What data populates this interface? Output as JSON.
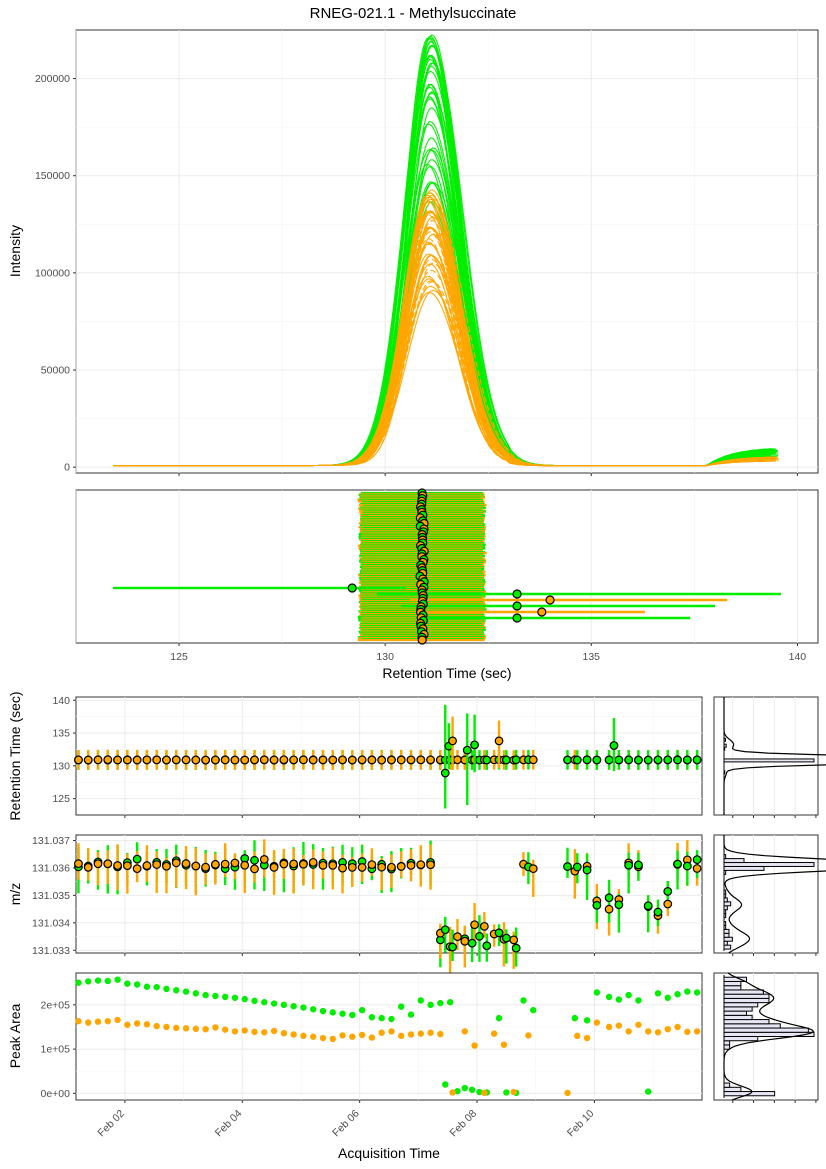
{
  "title": "RNEG-021.1 - Methylsuccinate",
  "colors": {
    "series_a": "#00ee00",
    "series_b": "#ffa500",
    "point_edge": "#000000",
    "hist_fill": "#e6e6f5",
    "grid": "#ebebeb",
    "panel_border": "#333333"
  },
  "chart_data": [
    {
      "type": "line",
      "name": "chromatogram",
      "xlabel": "",
      "ylabel": "Intensity",
      "xlim": [
        122.5,
        140.5
      ],
      "ylim": [
        -3000,
        225000
      ],
      "yticks": [
        0,
        50000,
        100000,
        150000,
        200000
      ],
      "ytick_labels": [
        "0",
        "50000",
        "100000",
        "150000",
        "200000"
      ],
      "grid": true,
      "legend": "none",
      "trace_groups": [
        {
          "color": "green",
          "count": 40,
          "apex_rt": 131.1,
          "apex_range": [
            135000,
            222000
          ],
          "rt_range": [
            123.4,
            139.6
          ],
          "tail_level": 8000
        },
        {
          "color": "orange",
          "count": 40,
          "apex_rt": 131.1,
          "apex_range": [
            88000,
            142000
          ],
          "rt_range": [
            123.4,
            139.6
          ],
          "tail_level": 4000
        }
      ]
    },
    {
      "type": "scatter",
      "name": "peak_boundaries",
      "xlabel": "Retention Time (sec)",
      "xlim": [
        122.5,
        140.5
      ],
      "xticks": [
        125,
        130,
        135,
        140
      ],
      "xtick_labels": [
        "125",
        "130",
        "135",
        "140"
      ],
      "rows": 160,
      "typical_range": [
        129.4,
        132.4
      ],
      "outliers": [
        {
          "rt": 129.2,
          "left": 123.4,
          "right": 130.5,
          "color": "green"
        },
        {
          "rt": 133.2,
          "left": 129.8,
          "right": 139.6,
          "color": "green"
        },
        {
          "rt": 134.0,
          "left": 130.6,
          "right": 138.3,
          "color": "orange"
        },
        {
          "rt": 133.2,
          "left": 130.4,
          "right": 138.0,
          "color": "green"
        },
        {
          "rt": 133.8,
          "left": 130.8,
          "right": 136.3,
          "color": "orange"
        },
        {
          "rt": 133.2,
          "left": 130.9,
          "right": 137.4,
          "color": "green"
        }
      ]
    },
    {
      "type": "scatter",
      "name": "retention_time_trend",
      "ylabel": "Retention Time (sec)",
      "ylim": [
        122.5,
        140.5
      ],
      "yticks": [
        125,
        130,
        135,
        140
      ],
      "ytick_labels": [
        "125",
        "130",
        "135",
        "140"
      ],
      "baseline": 130.9,
      "errorbar_halfwidth": 1.5,
      "excursions": [
        {
          "date": "2024-02-07 11:00",
          "y": 128.9,
          "lo": 123.5,
          "hi": 139.3,
          "color": "green"
        },
        {
          "date": "2024-02-07 12:30",
          "y": 133.0,
          "lo": 129.5,
          "hi": 136.5,
          "color": "green"
        },
        {
          "date": "2024-02-07 14:00",
          "y": 133.8,
          "lo": 129.4,
          "hi": 137.5,
          "color": "orange"
        },
        {
          "date": "2024-02-07 20:00",
          "y": 132.4,
          "lo": 124.0,
          "hi": 138.0,
          "color": "green"
        },
        {
          "date": "2024-02-07 23:00",
          "y": 133.2,
          "lo": 129.0,
          "hi": 137.8,
          "color": "green"
        },
        {
          "date": "2024-02-08 09:00",
          "y": 133.8,
          "lo": 129.6,
          "hi": 136.9,
          "color": "orange"
        },
        {
          "date": "2024-02-10 08:00",
          "y": 133.1,
          "lo": 129.2,
          "hi": 137.3,
          "color": "green"
        }
      ]
    },
    {
      "type": "scatter",
      "name": "mz_trend",
      "ylabel": "m/z",
      "ylim": [
        131.0329,
        131.0372
      ],
      "yticks": [
        131.033,
        131.034,
        131.035,
        131.036,
        131.037
      ],
      "ytick_labels": [
        "131.033",
        "131.034",
        "131.035",
        "131.036",
        "131.037"
      ]
    },
    {
      "type": "scatter",
      "name": "peak_area_trend",
      "ylabel": "Peak Area",
      "xlabel": "Acquisition Time",
      "ylim": [
        -15000,
        272000
      ],
      "yticks": [
        0,
        100000,
        200000
      ],
      "ytick_labels": [
        "0e+00",
        "1e+05",
        "2e+05"
      ],
      "xlim": [
        "2024-02-01 04:00",
        "2024-02-11 20:00"
      ],
      "xticks": [
        "2024-02-02",
        "2024-02-04",
        "2024-02-06",
        "2024-02-08",
        "2024-02-10"
      ],
      "xtick_labels": [
        "Feb 02",
        "Feb 04",
        "Feb 06",
        "Feb 08",
        "Feb 10"
      ],
      "green": [
        [
          "2024-02-01 05:00",
          250000
        ],
        [
          "2024-02-01 09:00",
          253000
        ],
        [
          "2024-02-01 13:00",
          255000
        ],
        [
          "2024-02-01 17:00",
          254000
        ],
        [
          "2024-02-01 21:00",
          257000
        ],
        [
          "2024-02-02 01:00",
          248000
        ],
        [
          "2024-02-02 05:00",
          246000
        ],
        [
          "2024-02-02 09:00",
          241000
        ],
        [
          "2024-02-02 13:00",
          240000
        ],
        [
          "2024-02-02 17:00",
          236000
        ],
        [
          "2024-02-02 21:00",
          233000
        ],
        [
          "2024-02-03 01:00",
          230000
        ],
        [
          "2024-02-03 05:00",
          226000
        ],
        [
          "2024-02-03 09:00",
          222000
        ],
        [
          "2024-02-03 13:00",
          220000
        ],
        [
          "2024-02-03 17:00",
          218000
        ],
        [
          "2024-02-03 21:00",
          216000
        ],
        [
          "2024-02-04 01:00",
          213000
        ],
        [
          "2024-02-04 05:00",
          209000
        ],
        [
          "2024-02-04 09:00",
          206000
        ],
        [
          "2024-02-04 13:00",
          203000
        ],
        [
          "2024-02-04 17:00",
          200000
        ],
        [
          "2024-02-04 21:00",
          197000
        ],
        [
          "2024-02-05 01:00",
          194000
        ],
        [
          "2024-02-05 05:00",
          190000
        ],
        [
          "2024-02-05 09:00",
          186000
        ],
        [
          "2024-02-05 13:00",
          183000
        ],
        [
          "2024-02-05 17:00",
          180000
        ],
        [
          "2024-02-05 21:00",
          177000
        ],
        [
          "2024-02-06 01:00",
          188000
        ],
        [
          "2024-02-06 05:00",
          172000
        ],
        [
          "2024-02-06 09:00",
          170000
        ],
        [
          "2024-02-06 13:00",
          168000
        ],
        [
          "2024-02-06 17:00",
          196000
        ],
        [
          "2024-02-06 21:00",
          178000
        ],
        [
          "2024-02-07 01:00",
          210000
        ],
        [
          "2024-02-07 05:00",
          200000
        ],
        [
          "2024-02-07 09:00",
          204000
        ],
        [
          "2024-02-07 11:00",
          20000
        ],
        [
          "2024-02-07 13:00",
          206000
        ],
        [
          "2024-02-07 16:00",
          5000
        ],
        [
          "2024-02-07 19:00",
          12000
        ],
        [
          "2024-02-07 22:00",
          8000
        ],
        [
          "2024-02-08 01:00",
          3000
        ],
        [
          "2024-02-08 04:00",
          2000
        ],
        [
          "2024-02-08 09:00",
          170000
        ],
        [
          "2024-02-08 12:00",
          2000
        ],
        [
          "2024-02-08 16:00",
          1000
        ],
        [
          "2024-02-08 19:00",
          210000
        ],
        [
          "2024-02-08 23:00",
          188000
        ],
        [
          "2024-02-09 16:00",
          170000
        ],
        [
          "2024-02-09 21:00",
          165000
        ],
        [
          "2024-02-10 01:00",
          228000
        ],
        [
          "2024-02-10 06:00",
          218000
        ],
        [
          "2024-02-10 10:00",
          212000
        ],
        [
          "2024-02-10 14:00",
          222000
        ],
        [
          "2024-02-10 18:00",
          210000
        ],
        [
          "2024-02-10 22:00",
          4000
        ],
        [
          "2024-02-11 02:00",
          226000
        ],
        [
          "2024-02-11 06:00",
          216000
        ],
        [
          "2024-02-11 10:00",
          224000
        ],
        [
          "2024-02-11 14:00",
          230000
        ],
        [
          "2024-02-11 18:00",
          228000
        ]
      ],
      "orange": [
        [
          "2024-02-01 05:00",
          163000
        ],
        [
          "2024-02-01 09:00",
          160000
        ],
        [
          "2024-02-01 13:00",
          162000
        ],
        [
          "2024-02-01 17:00",
          163000
        ],
        [
          "2024-02-01 21:00",
          166000
        ],
        [
          "2024-02-02 01:00",
          155000
        ],
        [
          "2024-02-02 05:00",
          158000
        ],
        [
          "2024-02-02 09:00",
          156000
        ],
        [
          "2024-02-02 13:00",
          152000
        ],
        [
          "2024-02-02 17:00",
          150000
        ],
        [
          "2024-02-02 21:00",
          148000
        ],
        [
          "2024-02-03 01:00",
          147000
        ],
        [
          "2024-02-03 05:00",
          146000
        ],
        [
          "2024-02-03 09:00",
          145000
        ],
        [
          "2024-02-03 13:00",
          149000
        ],
        [
          "2024-02-03 17:00",
          144000
        ],
        [
          "2024-02-03 21:00",
          140000
        ],
        [
          "2024-02-04 01:00",
          142000
        ],
        [
          "2024-02-04 05:00",
          139000
        ],
        [
          "2024-02-04 09:00",
          138000
        ],
        [
          "2024-02-04 13:00",
          141000
        ],
        [
          "2024-02-04 17:00",
          136000
        ],
        [
          "2024-02-04 21:00",
          133000
        ],
        [
          "2024-02-05 01:00",
          130000
        ],
        [
          "2024-02-05 05:00",
          128000
        ],
        [
          "2024-02-05 09:00",
          125000
        ],
        [
          "2024-02-05 13:00",
          123000
        ],
        [
          "2024-02-05 17:00",
          131000
        ],
        [
          "2024-02-05 21:00",
          128000
        ],
        [
          "2024-02-06 01:00",
          132000
        ],
        [
          "2024-02-06 05:00",
          126000
        ],
        [
          "2024-02-06 09:00",
          137000
        ],
        [
          "2024-02-06 13:00",
          140000
        ],
        [
          "2024-02-06 17:00",
          130000
        ],
        [
          "2024-02-06 21:00",
          133000
        ],
        [
          "2024-02-07 01:00",
          135000
        ],
        [
          "2024-02-07 05:00",
          137000
        ],
        [
          "2024-02-07 09:00",
          134000
        ],
        [
          "2024-02-07 14:00",
          2000
        ],
        [
          "2024-02-07 19:00",
          140000
        ],
        [
          "2024-02-07 23:00",
          108000
        ],
        [
          "2024-02-08 03:00",
          1000
        ],
        [
          "2024-02-08 07:00",
          135000
        ],
        [
          "2024-02-08 11:00",
          110000
        ],
        [
          "2024-02-08 15:00",
          3000
        ],
        [
          "2024-02-08 21:00",
          131000
        ],
        [
          "2024-02-09 13:00",
          1000
        ],
        [
          "2024-02-09 17:00",
          130000
        ],
        [
          "2024-02-09 21:00",
          125000
        ],
        [
          "2024-02-10 01:00",
          160000
        ],
        [
          "2024-02-10 06:00",
          150000
        ],
        [
          "2024-02-10 10:00",
          153000
        ],
        [
          "2024-02-10 14:00",
          140000
        ],
        [
          "2024-02-10 18:00",
          155000
        ],
        [
          "2024-02-10 22:00",
          140000
        ],
        [
          "2024-02-11 02:00",
          138000
        ],
        [
          "2024-02-11 06:00",
          145000
        ],
        [
          "2024-02-11 10:00",
          150000
        ],
        [
          "2024-02-11 14:00",
          139000
        ],
        [
          "2024-02-11 18:00",
          140000
        ]
      ]
    }
  ]
}
